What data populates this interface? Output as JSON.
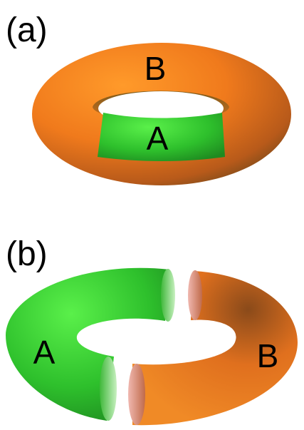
{
  "panels": [
    {
      "label": "(a)",
      "regions": [
        "B",
        "A"
      ]
    },
    {
      "label": "(b)",
      "regions": [
        "A",
        "B"
      ]
    }
  ]
}
